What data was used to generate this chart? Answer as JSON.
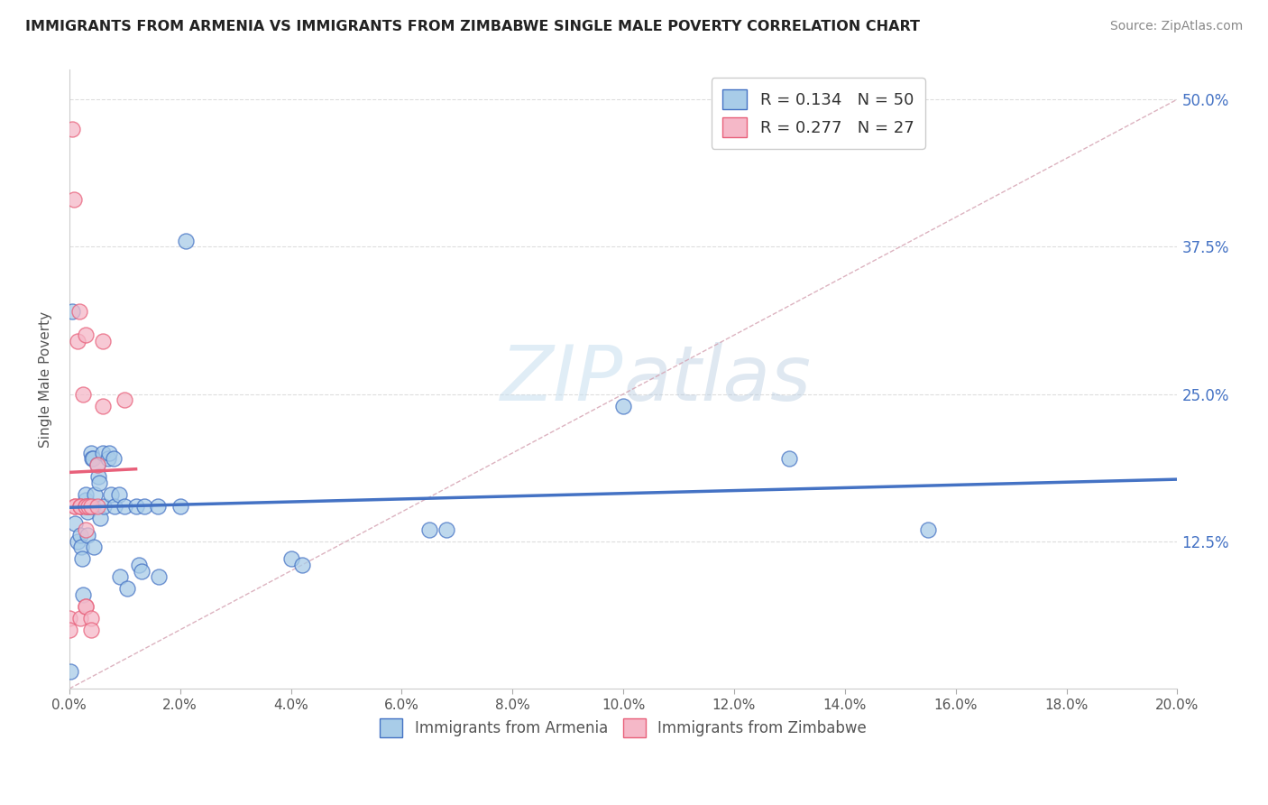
{
  "title": "IMMIGRANTS FROM ARMENIA VS IMMIGRANTS FROM ZIMBABWE SINGLE MALE POVERTY CORRELATION CHART",
  "source": "Source: ZipAtlas.com",
  "ylabel": "Single Male Poverty",
  "ytick_labels": [
    "50.0%",
    "37.5%",
    "25.0%",
    "12.5%"
  ],
  "ytick_values": [
    0.5,
    0.375,
    0.25,
    0.125
  ],
  "legend_label1": "R = 0.134   N = 50",
  "legend_label2": "R = 0.277   N = 27",
  "legend_bottom1": "Immigrants from Armenia",
  "legend_bottom2": "Immigrants from Zimbabwe",
  "color_armenia": "#a8cce8",
  "color_zimbabwe": "#f5b8c8",
  "color_armenia_line": "#4472c4",
  "color_zimbabwe_line": "#e8607a",
  "color_diag": "#c8b8b8",
  "armenia_x": [
    0.0002,
    0.001,
    0.0015,
    0.002,
    0.002,
    0.0022,
    0.0023,
    0.0025,
    0.003,
    0.003,
    0.0032,
    0.0033,
    0.0035,
    0.004,
    0.0041,
    0.0042,
    0.0043,
    0.0044,
    0.0045,
    0.005,
    0.0052,
    0.0054,
    0.0055,
    0.006,
    0.0062,
    0.007,
    0.0072,
    0.0075,
    0.008,
    0.0082,
    0.009,
    0.0092,
    0.01,
    0.0105,
    0.012,
    0.0125,
    0.013,
    0.0135,
    0.016,
    0.0162,
    0.02,
    0.021,
    0.04,
    0.042,
    0.065,
    0.068,
    0.1,
    0.13,
    0.155,
    0.0005
  ],
  "armenia_y": [
    0.015,
    0.14,
    0.125,
    0.13,
    0.155,
    0.12,
    0.11,
    0.08,
    0.16,
    0.165,
    0.15,
    0.13,
    0.155,
    0.2,
    0.195,
    0.195,
    0.155,
    0.12,
    0.165,
    0.19,
    0.18,
    0.175,
    0.145,
    0.2,
    0.155,
    0.195,
    0.2,
    0.165,
    0.195,
    0.155,
    0.165,
    0.095,
    0.155,
    0.085,
    0.155,
    0.105,
    0.1,
    0.155,
    0.155,
    0.095,
    0.155,
    0.38,
    0.11,
    0.105,
    0.135,
    0.135,
    0.24,
    0.195,
    0.135,
    0.32
  ],
  "zimbabwe_x": [
    0.0001,
    0.0001,
    0.0005,
    0.0008,
    0.001,
    0.001,
    0.0015,
    0.0018,
    0.002,
    0.002,
    0.002,
    0.0025,
    0.003,
    0.003,
    0.003,
    0.003,
    0.003,
    0.003,
    0.0035,
    0.004,
    0.004,
    0.004,
    0.005,
    0.005,
    0.006,
    0.006,
    0.01
  ],
  "zimbabwe_y": [
    0.06,
    0.05,
    0.475,
    0.415,
    0.155,
    0.155,
    0.295,
    0.32,
    0.155,
    0.155,
    0.06,
    0.25,
    0.155,
    0.135,
    0.07,
    0.07,
    0.3,
    0.155,
    0.155,
    0.155,
    0.06,
    0.05,
    0.155,
    0.19,
    0.295,
    0.24,
    0.245
  ],
  "xmin": 0.0,
  "xmax": 0.2,
  "ymin": 0.0,
  "ymax": 0.525
}
